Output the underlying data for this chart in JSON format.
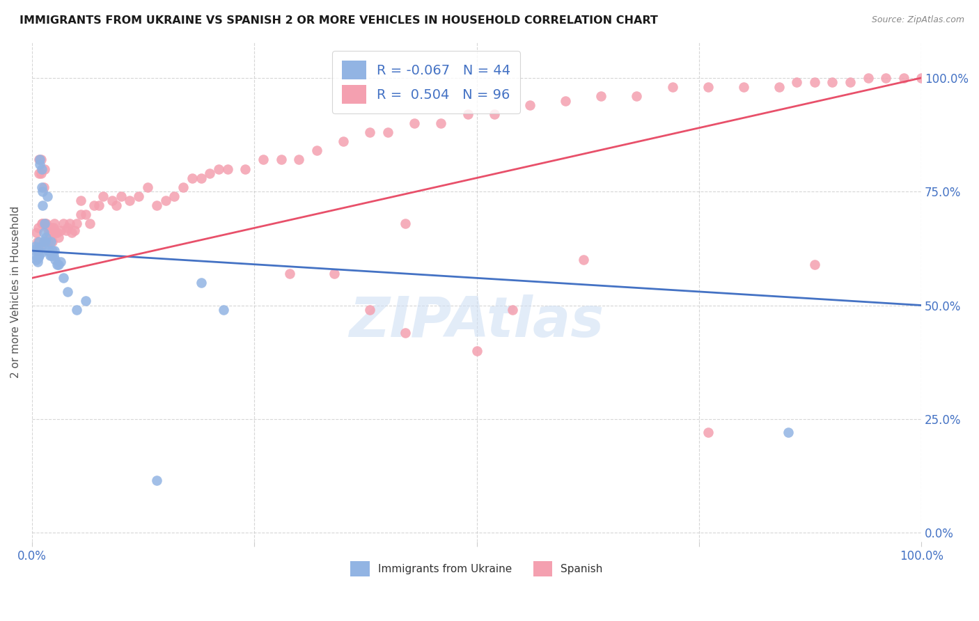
{
  "title": "IMMIGRANTS FROM UKRAINE VS SPANISH 2 OR MORE VEHICLES IN HOUSEHOLD CORRELATION CHART",
  "source": "Source: ZipAtlas.com",
  "ylabel": "2 or more Vehicles in Household",
  "ytick_labels": [
    "0.0%",
    "25.0%",
    "50.0%",
    "75.0%",
    "100.0%"
  ],
  "ytick_values": [
    0.0,
    0.25,
    0.5,
    0.75,
    1.0
  ],
  "xlim": [
    0.0,
    1.0
  ],
  "ylim": [
    -0.02,
    1.08
  ],
  "blue_R": -0.067,
  "blue_N": 44,
  "pink_R": 0.504,
  "pink_N": 96,
  "legend_label_blue": "Immigrants from Ukraine",
  "legend_label_pink": "Spanish",
  "blue_color": "#92b4e3",
  "pink_color": "#f4a0b0",
  "blue_line_color": "#4472c4",
  "pink_line_color": "#e8506a",
  "watermark": "ZIPAtlas",
  "background_color": "#ffffff",
  "blue_scatter_x": [
    0.003,
    0.004,
    0.005,
    0.005,
    0.006,
    0.006,
    0.007,
    0.007,
    0.008,
    0.008,
    0.009,
    0.009,
    0.01,
    0.01,
    0.011,
    0.011,
    0.012,
    0.012,
    0.013,
    0.013,
    0.014,
    0.015,
    0.016,
    0.017,
    0.018,
    0.019,
    0.02,
    0.021,
    0.022,
    0.023,
    0.024,
    0.025,
    0.026,
    0.028,
    0.03,
    0.032,
    0.035,
    0.04,
    0.05,
    0.06,
    0.19,
    0.215,
    0.85,
    0.14
  ],
  "blue_scatter_y": [
    0.63,
    0.61,
    0.625,
    0.6,
    0.615,
    0.595,
    0.625,
    0.605,
    0.64,
    0.61,
    0.82,
    0.81,
    0.63,
    0.615,
    0.8,
    0.76,
    0.75,
    0.72,
    0.66,
    0.64,
    0.68,
    0.64,
    0.65,
    0.74,
    0.62,
    0.62,
    0.61,
    0.64,
    0.61,
    0.62,
    0.61,
    0.62,
    0.6,
    0.59,
    0.59,
    0.595,
    0.56,
    0.53,
    0.49,
    0.51,
    0.55,
    0.49,
    0.22,
    0.115
  ],
  "pink_scatter_x": [
    0.005,
    0.006,
    0.007,
    0.007,
    0.008,
    0.008,
    0.009,
    0.01,
    0.01,
    0.011,
    0.012,
    0.013,
    0.014,
    0.015,
    0.015,
    0.016,
    0.017,
    0.018,
    0.019,
    0.02,
    0.021,
    0.022,
    0.023,
    0.024,
    0.025,
    0.026,
    0.028,
    0.03,
    0.032,
    0.035,
    0.038,
    0.04,
    0.042,
    0.045,
    0.048,
    0.05,
    0.055,
    0.06,
    0.065,
    0.07,
    0.075,
    0.08,
    0.09,
    0.095,
    0.1,
    0.11,
    0.12,
    0.13,
    0.14,
    0.15,
    0.16,
    0.17,
    0.18,
    0.19,
    0.2,
    0.21,
    0.22,
    0.24,
    0.26,
    0.28,
    0.3,
    0.32,
    0.35,
    0.38,
    0.4,
    0.43,
    0.46,
    0.49,
    0.52,
    0.56,
    0.6,
    0.64,
    0.68,
    0.72,
    0.76,
    0.8,
    0.84,
    0.86,
    0.88,
    0.9,
    0.92,
    0.94,
    0.96,
    0.98,
    1.0,
    0.055,
    0.29,
    0.34,
    0.42,
    0.5,
    0.62,
    0.42,
    0.38,
    0.54,
    0.76,
    0.88
  ],
  "pink_scatter_y": [
    0.66,
    0.64,
    0.62,
    0.67,
    0.82,
    0.79,
    0.63,
    0.82,
    0.79,
    0.68,
    0.68,
    0.76,
    0.8,
    0.64,
    0.68,
    0.68,
    0.67,
    0.64,
    0.66,
    0.67,
    0.66,
    0.67,
    0.64,
    0.67,
    0.68,
    0.66,
    0.66,
    0.65,
    0.665,
    0.68,
    0.665,
    0.67,
    0.68,
    0.66,
    0.665,
    0.68,
    0.7,
    0.7,
    0.68,
    0.72,
    0.72,
    0.74,
    0.73,
    0.72,
    0.74,
    0.73,
    0.74,
    0.76,
    0.72,
    0.73,
    0.74,
    0.76,
    0.78,
    0.78,
    0.79,
    0.8,
    0.8,
    0.8,
    0.82,
    0.82,
    0.82,
    0.84,
    0.86,
    0.88,
    0.88,
    0.9,
    0.9,
    0.92,
    0.92,
    0.94,
    0.95,
    0.96,
    0.96,
    0.98,
    0.98,
    0.98,
    0.98,
    0.99,
    0.99,
    0.99,
    0.99,
    1.0,
    1.0,
    1.0,
    1.0,
    0.73,
    0.57,
    0.57,
    0.44,
    0.4,
    0.6,
    0.68,
    0.49,
    0.49,
    0.22,
    0.59
  ],
  "blue_line_x": [
    0.0,
    1.0
  ],
  "blue_line_y": [
    0.62,
    0.5
  ],
  "pink_line_x": [
    0.0,
    1.0
  ],
  "pink_line_y": [
    0.56,
    1.0
  ]
}
